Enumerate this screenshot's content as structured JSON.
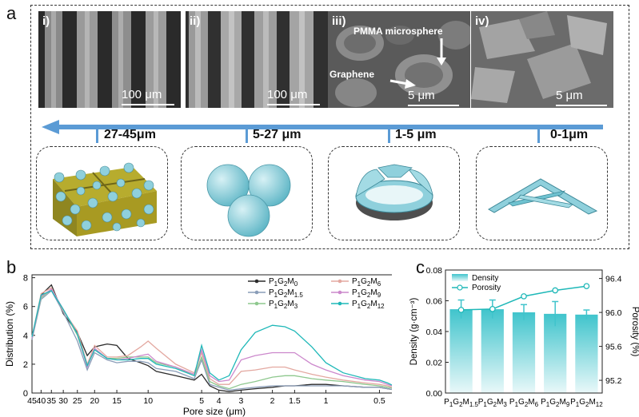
{
  "figure": {
    "panels": {
      "a": "a",
      "b": "b",
      "c": "c"
    }
  },
  "panel_a": {
    "micrographs": [
      {
        "label": "i)",
        "scale": "100 μm"
      },
      {
        "label": "ii)",
        "scale": "100 μm"
      },
      {
        "label": "iii)",
        "scale": "5 μm",
        "annotations": [
          "PMMA microsphere",
          "Graphene"
        ]
      },
      {
        "label": "iv)",
        "scale": "5 μm"
      }
    ],
    "size_ranges": [
      "27-45μm",
      "5-27 μm",
      "1-5 μm",
      "0-1μm"
    ],
    "colors": {
      "arrow": "#5b9bd5",
      "sphere": "#8fd0dc",
      "lattice": "#a89a22"
    }
  },
  "chart_data": [
    {
      "type": "line",
      "panel": "b",
      "xlabel": "Pore size (μm)",
      "ylabel": "Distribution (%)",
      "x_scale": "log",
      "x_reversed": true,
      "xlim": [
        0.4,
        45
      ],
      "ylim": [
        0,
        8.2
      ],
      "x_tick_labels": [
        "45",
        "40",
        "35",
        "30",
        "25",
        "20",
        "15",
        "10",
        "5",
        "4",
        "3",
        "2",
        "1.5",
        "1",
        "0.5"
      ],
      "y_tick_labels": [
        "0",
        "2",
        "4",
        "6",
        "8"
      ],
      "x": [
        45,
        40,
        35,
        30,
        25,
        22,
        20,
        17,
        15,
        13,
        11,
        10,
        9,
        7,
        5.5,
        5,
        4.5,
        4,
        3.5,
        3,
        2.5,
        2,
        1.7,
        1.5,
        1.2,
        1,
        0.8,
        0.6,
        0.5,
        0.45,
        0.4
      ],
      "series": [
        {
          "name": "P1G2M0",
          "color": "#2b2b2b",
          "values": [
            3.8,
            6.8,
            7.5,
            5.5,
            4.2,
            2.6,
            3.2,
            3.4,
            3.3,
            2.4,
            2.1,
            1.9,
            1.5,
            1.2,
            0.9,
            1.3,
            0.5,
            0.2,
            0.1,
            0.2,
            0.3,
            0.4,
            0.5,
            0.5,
            0.6,
            0.6,
            0.5,
            0.4,
            0.4,
            0.3,
            0.2
          ]
        },
        {
          "name": "P1G2M1.5",
          "color": "#8a9db8",
          "values": [
            3.7,
            6.5,
            7.1,
            5.6,
            3.6,
            1.6,
            2.8,
            2.3,
            2.1,
            2.2,
            2.2,
            2.1,
            1.7,
            1.5,
            1.0,
            2.3,
            0.6,
            0.4,
            0.2,
            0.3,
            0.4,
            0.5,
            0.5,
            0.5,
            0.5,
            0.5,
            0.5,
            0.4,
            0.4,
            0.3,
            0.2
          ]
        },
        {
          "name": "P1G2M3",
          "color": "#8ec88e",
          "values": [
            3.8,
            6.6,
            7.2,
            5.8,
            4.0,
            1.9,
            3.0,
            2.4,
            2.4,
            2.5,
            2.5,
            2.5,
            2.1,
            1.8,
            1.2,
            2.5,
            0.8,
            0.5,
            0.3,
            0.6,
            0.8,
            1.1,
            1.2,
            1.2,
            1.0,
            0.9,
            0.8,
            0.6,
            0.5,
            0.4,
            0.3
          ]
        },
        {
          "name": "P1G2M6",
          "color": "#e3a8a0",
          "values": [
            3.9,
            6.9,
            7.3,
            5.7,
            4.3,
            2.0,
            3.3,
            2.5,
            2.5,
            2.6,
            3.2,
            3.6,
            3.1,
            2.0,
            1.4,
            2.8,
            1.0,
            0.6,
            0.6,
            1.5,
            1.6,
            1.8,
            1.8,
            1.6,
            1.3,
            1.1,
            0.9,
            0.7,
            0.6,
            0.5,
            0.3
          ]
        },
        {
          "name": "P1G2M9",
          "color": "#cc88cc",
          "values": [
            3.8,
            6.7,
            7.2,
            5.8,
            4.1,
            1.8,
            3.1,
            2.4,
            2.3,
            2.4,
            2.6,
            2.7,
            2.2,
            1.8,
            1.3,
            3.0,
            1.2,
            0.8,
            0.9,
            2.3,
            2.6,
            2.8,
            2.8,
            2.8,
            2.0,
            1.6,
            1.2,
            0.9,
            0.8,
            0.6,
            0.4
          ]
        },
        {
          "name": "P1G2M12",
          "color": "#1fb8b8",
          "values": [
            3.9,
            6.8,
            7.1,
            5.8,
            4.1,
            1.9,
            3.0,
            2.4,
            2.3,
            2.3,
            2.4,
            2.4,
            2.0,
            1.7,
            1.2,
            3.3,
            1.4,
            0.9,
            1.2,
            3.0,
            4.2,
            4.7,
            4.6,
            4.3,
            3.2,
            2.1,
            1.4,
            1.0,
            0.9,
            0.7,
            0.4
          ]
        }
      ]
    },
    {
      "type": "bar",
      "panel": "c",
      "categories": [
        "P1G2M1.5",
        "P1G2M3",
        "P1G2M6",
        "P1G2M9",
        "P1G2M12"
      ],
      "ylabel": "Density (g·cm⁻³)",
      "y2label": "Porosity (%)",
      "ylim": [
        0,
        0.08
      ],
      "y2lim": [
        95.05,
        96.5
      ],
      "y_tick_labels": [
        "0.00",
        "0.02",
        "0.04",
        "0.06",
        "0.08"
      ],
      "y2_tick_labels": [
        "95.2",
        "95.6",
        "96.0",
        "96.4"
      ],
      "legend": [
        "Density",
        "Porosity"
      ],
      "series": [
        {
          "name": "Density",
          "color": "#40c4cc",
          "values": [
            0.0545,
            0.0545,
            0.0525,
            0.0515,
            0.051
          ],
          "errors": [
            0.006,
            0.006,
            0.005,
            0.008,
            0.003
          ]
        },
        {
          "name": "Porosity",
          "color": "#1fb8b8",
          "axis": "right",
          "values": [
            96.03,
            96.04,
            96.19,
            96.26,
            96.31
          ]
        }
      ]
    }
  ]
}
